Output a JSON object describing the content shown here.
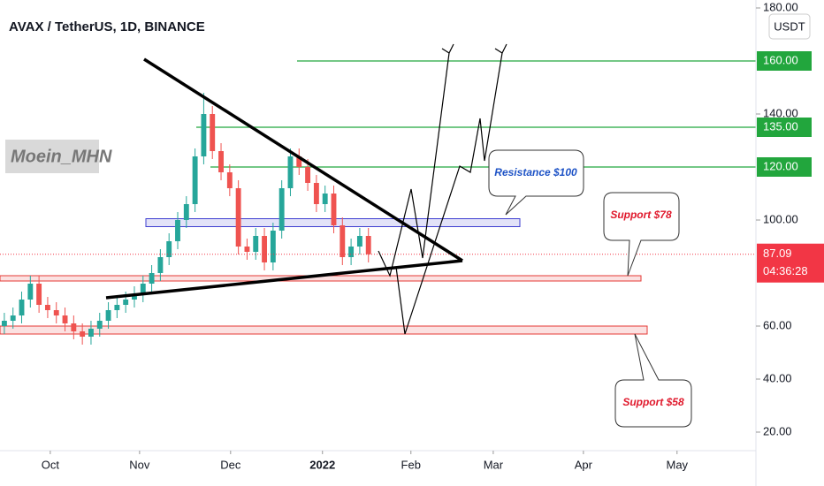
{
  "chart_data": {
    "type": "candlestick",
    "title": "AVAX / TetherUS, 1D, BINANCE",
    "watermark": "Moein_MHN",
    "currency": "USDT",
    "candles": {
      "open": [
        60,
        62,
        64,
        70,
        76,
        68,
        66,
        64,
        61,
        58,
        56,
        59,
        62,
        66,
        68,
        70,
        72,
        76,
        80,
        86,
        92,
        100,
        106,
        124,
        140,
        126,
        118,
        112,
        90,
        88,
        94,
        84,
        96,
        112,
        124,
        120,
        114,
        106,
        110,
        98,
        86,
        90,
        94
      ],
      "high": [
        65,
        67,
        73,
        79,
        79,
        71,
        69,
        67,
        64,
        61,
        62,
        65,
        69,
        71,
        73,
        75,
        79,
        83,
        89,
        95,
        103,
        109,
        127,
        148,
        143,
        129,
        121,
        115,
        93,
        97,
        97,
        99,
        115,
        127,
        127,
        123,
        117,
        113,
        113,
        101,
        93,
        97,
        97
      ],
      "low": [
        57,
        59,
        61,
        67,
        65,
        63,
        61,
        58,
        55,
        53,
        53,
        56,
        59,
        63,
        65,
        67,
        69,
        73,
        77,
        83,
        89,
        97,
        103,
        121,
        123,
        115,
        109,
        87,
        85,
        85,
        81,
        81,
        93,
        109,
        117,
        111,
        103,
        103,
        95,
        83,
        83,
        87,
        84
      ],
      "close": [
        62,
        64,
        70,
        76,
        68,
        66,
        64,
        61,
        58,
        56,
        59,
        62,
        66,
        68,
        70,
        72,
        76,
        80,
        86,
        92,
        100,
        106,
        124,
        140,
        126,
        118,
        112,
        90,
        88,
        94,
        84,
        96,
        112,
        124,
        120,
        114,
        106,
        110,
        98,
        86,
        90,
        94,
        87.09
      ],
      "up_color": "#26a69a",
      "down_color": "#ef5350"
    },
    "xlim": [
      0,
      87.2
    ],
    "xticks": [
      {
        "value": 5.8,
        "label": "Oct"
      },
      {
        "value": 16.1,
        "label": "Nov"
      },
      {
        "value": 26.6,
        "label": "Dec"
      },
      {
        "value": 37.2,
        "label": "2022"
      },
      {
        "value": 47.4,
        "label": "Feb"
      },
      {
        "value": 56.9,
        "label": "Mar"
      },
      {
        "value": 67.3,
        "label": "Apr"
      },
      {
        "value": 78.1,
        "label": "May"
      }
    ],
    "ylim": [
      13,
      183
    ],
    "yticks": [
      {
        "value": 20,
        "label": "20.00"
      },
      {
        "value": 40,
        "label": "40.00"
      },
      {
        "value": 60,
        "label": "60.00"
      },
      {
        "value": 100,
        "label": "100.00"
      },
      {
        "value": 140,
        "label": "140.00"
      },
      {
        "value": 180,
        "label": "180.00"
      }
    ],
    "levels": [
      {
        "value": 160,
        "label": "160.00",
        "color": "#22a63d"
      },
      {
        "value": 135,
        "label": "135.00",
        "color": "#22a63d"
      },
      {
        "value": 120,
        "label": "120.00",
        "color": "#22a63d"
      }
    ],
    "zones": [
      {
        "low": 97.5,
        "high": 100.5,
        "color": "#3f3fd0"
      },
      {
        "low": 77,
        "high": 79,
        "color": "#e53935"
      },
      {
        "low": 57,
        "high": 60,
        "color": "#e53935"
      }
    ],
    "last_price": {
      "value": 87.09,
      "label": "87.09",
      "countdown": "04:36:28",
      "color": "#f23645"
    },
    "annotations": [
      "Resistance $100",
      "Support $78",
      "Support $58"
    ]
  }
}
